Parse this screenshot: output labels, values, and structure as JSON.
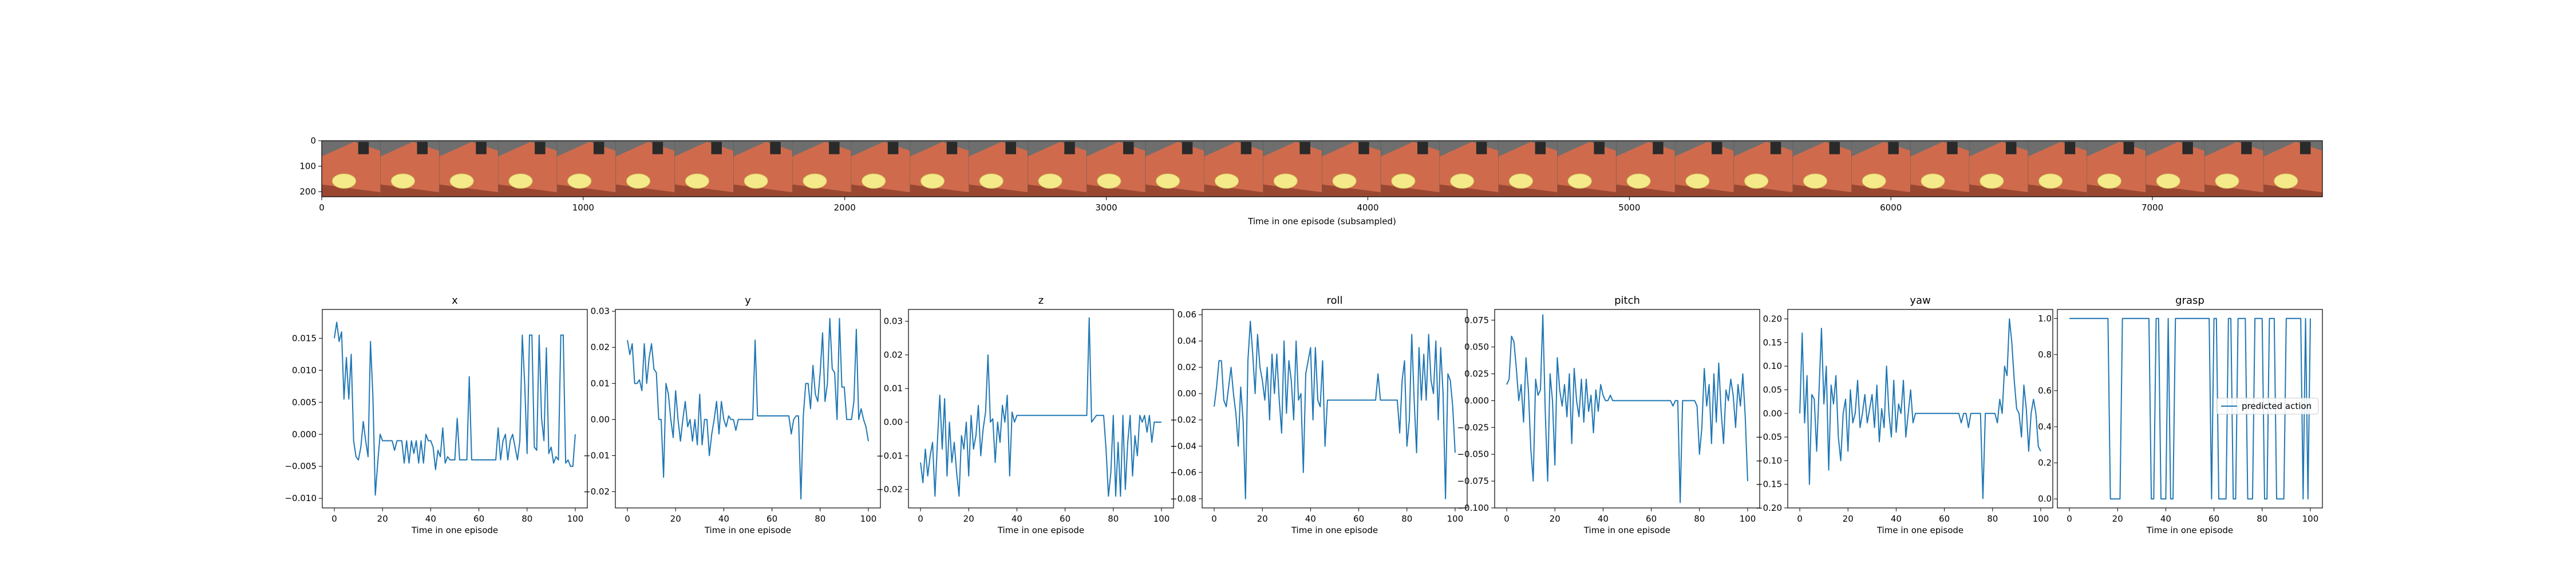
{
  "colors": {
    "line": "#1f77b4",
    "axis": "#000000",
    "table": "#cf6b4c",
    "table_dark": "#9a4732",
    "bg": "#6e6e6e",
    "cup": "#f4ea8a"
  },
  "strip": {
    "xlabel": "Time in one episode (subsampled)",
    "xticks": [
      0,
      1000,
      2000,
      3000,
      4000,
      5000,
      6000,
      7000
    ],
    "yticks": [
      0,
      100,
      200
    ],
    "xlim": [
      0,
      7650
    ],
    "ylim": [
      220,
      0
    ],
    "frame_count": 34
  },
  "chart_data": [
    {
      "type": "line",
      "title": "x",
      "xlabel": "Time in one episode",
      "xlim": [
        -5,
        105
      ],
      "ylim": [
        -0.0115,
        0.0195
      ],
      "xticks": [
        0,
        20,
        40,
        60,
        80,
        100
      ],
      "yticks": [
        -0.01,
        -0.005,
        0.0,
        0.005,
        0.01,
        0.015
      ],
      "ytick_labels": [
        "−0.010",
        "−0.005",
        "0.000",
        "0.005",
        "0.010",
        "0.015"
      ],
      "values": [
        0.015,
        0.0175,
        0.0145,
        0.016,
        0.0055,
        0.012,
        0.0055,
        0.0125,
        -0.001,
        -0.0035,
        -0.004,
        -0.002,
        0.002,
        -0.001,
        -0.0035,
        0.0145,
        0.006,
        -0.0095,
        -0.0045,
        0.0,
        -0.001,
        -0.001,
        -0.001,
        -0.001,
        -0.001,
        -0.0025,
        -0.001,
        -0.001,
        -0.001,
        -0.0045,
        -0.001,
        -0.0045,
        -0.001,
        -0.003,
        -0.001,
        -0.0045,
        -0.001,
        -0.0045,
        0.0,
        -0.001,
        -0.001,
        -0.002,
        -0.0055,
        -0.0025,
        -0.0035,
        0.001,
        -0.0045,
        -0.0035,
        -0.004,
        -0.004,
        -0.004,
        0.0025,
        -0.004,
        -0.004,
        -0.004,
        -0.004,
        0.009,
        -0.004,
        -0.004,
        -0.004,
        -0.004,
        -0.004,
        -0.004,
        -0.004,
        -0.004,
        -0.004,
        -0.004,
        -0.004,
        0.001,
        -0.004,
        -0.001,
        0.0,
        -0.004,
        -0.001,
        0.0,
        -0.002,
        -0.004,
        -0.001,
        0.0155,
        0.008,
        -0.003,
        0.0155,
        0.0155,
        -0.002,
        -0.0025,
        0.0155,
        0.0025,
        -0.001,
        0.0135,
        -0.003,
        -0.002,
        -0.0045,
        -0.0035,
        -0.004,
        0.0155,
        0.0155,
        -0.0045,
        -0.004,
        -0.005,
        -0.005,
        0.0
      ]
    },
    {
      "type": "line",
      "title": "y",
      "xlabel": "Time in one episode",
      "xlim": [
        -5,
        105
      ],
      "ylim": [
        -0.0245,
        0.0305
      ],
      "xticks": [
        0,
        20,
        40,
        60,
        80,
        100
      ],
      "yticks": [
        -0.02,
        -0.01,
        0.0,
        0.01,
        0.02,
        0.03
      ],
      "ytick_labels": [
        "−0.02",
        "−0.01",
        "0.00",
        "0.01",
        "0.02",
        "0.03"
      ],
      "values": [
        0.022,
        0.018,
        0.021,
        0.01,
        0.01,
        0.011,
        0.008,
        0.021,
        0.01,
        0.017,
        0.021,
        0.014,
        0.013,
        0.0,
        0.0,
        -0.016,
        0.01,
        0.007,
        0.0,
        -0.005,
        0.008,
        0.0,
        -0.006,
        0.0,
        0.005,
        -0.002,
        0.0,
        -0.006,
        0.0,
        -0.007,
        0.007,
        -0.007,
        0.0,
        0.0,
        -0.01,
        -0.004,
        0.0,
        0.005,
        -0.004,
        0.005,
        0.0,
        -0.002,
        0.001,
        0.0,
        0.0,
        -0.003,
        0.0,
        0.0,
        0.0,
        0.0,
        0.0,
        0.0,
        0.0,
        0.022,
        0.001,
        0.001,
        0.001,
        0.001,
        0.001,
        0.001,
        0.001,
        0.001,
        0.001,
        0.001,
        0.001,
        0.001,
        0.001,
        0.001,
        -0.004,
        0.0,
        0.001,
        0.001,
        -0.022,
        0.001,
        0.01,
        0.01,
        0.003,
        0.015,
        0.007,
        0.005,
        0.013,
        0.024,
        0.005,
        0.01,
        0.028,
        0.014,
        0.013,
        0.0,
        0.028,
        0.009,
        0.009,
        0.0,
        0.0,
        0.0,
        0.005,
        0.025,
        0.0,
        0.003,
        0.0,
        -0.002,
        -0.006
      ]
    },
    {
      "type": "line",
      "title": "z",
      "xlabel": "Time in one episode",
      "xlim": [
        -5,
        105
      ],
      "ylim": [
        -0.0255,
        0.0335
      ],
      "xticks": [
        0,
        20,
        40,
        60,
        80,
        100
      ],
      "yticks": [
        -0.02,
        -0.01,
        0.0,
        0.01,
        0.02,
        0.03
      ],
      "ytick_labels": [
        "−0.02",
        "−0.01",
        "0.00",
        "0.01",
        "0.02",
        "0.03"
      ],
      "values": [
        -0.012,
        -0.018,
        -0.008,
        -0.016,
        -0.01,
        -0.006,
        -0.022,
        -0.006,
        0.008,
        -0.008,
        0.007,
        -0.016,
        0.0,
        -0.012,
        -0.006,
        -0.015,
        -0.022,
        -0.004,
        -0.008,
        0.0,
        -0.016,
        0.002,
        -0.008,
        -0.004,
        0.005,
        -0.01,
        -0.002,
        0.003,
        0.02,
        0.0,
        0.001,
        -0.012,
        0.0,
        -0.006,
        0.005,
        0.0,
        0.008,
        -0.016,
        0.003,
        0.0,
        0.002,
        0.002,
        0.002,
        0.002,
        0.002,
        0.002,
        0.002,
        0.002,
        0.002,
        0.002,
        0.002,
        0.002,
        0.002,
        0.002,
        0.002,
        0.002,
        0.002,
        0.002,
        0.002,
        0.002,
        0.002,
        0.002,
        0.002,
        0.002,
        0.002,
        0.002,
        0.002,
        0.002,
        0.002,
        0.002,
        0.031,
        0.0,
        0.001,
        0.002,
        0.002,
        0.002,
        0.002,
        -0.008,
        -0.022,
        -0.015,
        0.002,
        -0.022,
        -0.006,
        -0.022,
        0.002,
        -0.02,
        -0.006,
        0.002,
        -0.016,
        -0.004,
        -0.01,
        0.002,
        0.0,
        0.002,
        -0.003,
        0.002,
        -0.006,
        0.0,
        0.0,
        0.0,
        0.0
      ]
    },
    {
      "type": "line",
      "title": "roll",
      "xlabel": "Time in one episode",
      "xlim": [
        -5,
        105
      ],
      "ylim": [
        -0.087,
        0.064
      ],
      "xticks": [
        0,
        20,
        40,
        60,
        80,
        100
      ],
      "yticks": [
        -0.08,
        -0.06,
        -0.04,
        -0.02,
        0.0,
        0.02,
        0.04,
        0.06
      ],
      "ytick_labels": [
        "−0.08",
        "−0.06",
        "−0.04",
        "−0.02",
        "0.00",
        "0.02",
        "0.04",
        "0.06"
      ],
      "values": [
        -0.01,
        0.005,
        0.025,
        0.025,
        -0.005,
        -0.01,
        0.005,
        0.02,
        0.0,
        -0.015,
        -0.04,
        0.005,
        -0.02,
        -0.08,
        0.025,
        0.055,
        0.03,
        0.0,
        0.045,
        0.02,
        0.01,
        -0.005,
        0.02,
        -0.02,
        0.03,
        0.0,
        0.03,
        -0.005,
        -0.03,
        0.04,
        -0.015,
        0.025,
        0.01,
        -0.02,
        0.04,
        -0.005,
        0.0,
        -0.06,
        0.015,
        0.025,
        0.035,
        -0.02,
        0.035,
        -0.005,
        -0.01,
        0.025,
        -0.04,
        -0.005,
        -0.005,
        -0.005,
        -0.005,
        -0.005,
        -0.005,
        -0.005,
        -0.005,
        -0.005,
        -0.005,
        -0.005,
        -0.005,
        -0.005,
        -0.005,
        -0.005,
        -0.005,
        -0.005,
        -0.005,
        -0.005,
        -0.005,
        -0.005,
        0.015,
        -0.005,
        -0.005,
        -0.005,
        -0.005,
        -0.005,
        -0.005,
        -0.005,
        -0.005,
        -0.03,
        0.01,
        0.025,
        -0.04,
        -0.02,
        0.045,
        -0.005,
        -0.045,
        0.035,
        -0.005,
        0.03,
        -0.005,
        0.045,
        0.01,
        0.0,
        0.04,
        -0.02,
        0.035,
        0.0,
        -0.08,
        0.015,
        0.01,
        -0.01,
        -0.045
      ]
    },
    {
      "type": "line",
      "title": "pitch",
      "xlabel": "Time in one episode",
      "xlim": [
        -5,
        105
      ],
      "ylim": [
        -0.1,
        0.085
      ],
      "xticks": [
        0,
        20,
        40,
        60,
        80,
        100
      ],
      "yticks": [
        -0.1,
        -0.075,
        -0.05,
        -0.025,
        0.0,
        0.025,
        0.05,
        0.075
      ],
      "ytick_labels": [
        "−0.100",
        "−0.075",
        "−0.050",
        "−0.025",
        "0.000",
        "0.025",
        "0.050",
        "0.075"
      ],
      "values": [
        0.015,
        0.02,
        0.06,
        0.055,
        0.03,
        0.0,
        0.015,
        -0.02,
        0.04,
        0.01,
        -0.045,
        -0.075,
        0.02,
        0.005,
        0.01,
        0.08,
        -0.01,
        -0.075,
        0.025,
        0.0,
        -0.06,
        0.04,
        0.01,
        -0.005,
        0.015,
        -0.015,
        0.025,
        -0.04,
        0.03,
        0.0,
        -0.015,
        0.02,
        -0.02,
        0.02,
        -0.01,
        0.005,
        -0.03,
        0.01,
        -0.01,
        0.015,
        0.005,
        0.0,
        0.0,
        0.005,
        0.0,
        0.0,
        0.0,
        0.0,
        0.0,
        0.0,
        0.0,
        0.0,
        0.0,
        0.0,
        0.0,
        0.0,
        0.0,
        0.0,
        0.0,
        0.0,
        0.0,
        0.0,
        0.0,
        0.0,
        0.0,
        0.0,
        0.0,
        0.0,
        0.0,
        -0.005,
        0.0,
        0.0,
        -0.095,
        0.0,
        0.0,
        0.0,
        0.0,
        0.0,
        0.0,
        -0.005,
        -0.05,
        -0.025,
        0.03,
        -0.005,
        0.015,
        -0.04,
        0.025,
        -0.02,
        0.035,
        -0.01,
        -0.04,
        0.01,
        0.0,
        0.02,
        0.005,
        -0.025,
        0.015,
        -0.005,
        0.025,
        -0.015,
        -0.075
      ]
    },
    {
      "type": "line",
      "title": "yaw",
      "xlabel": "Time in one episode",
      "xlim": [
        -5,
        105
      ],
      "ylim": [
        -0.2,
        0.22
      ],
      "xticks": [
        0,
        20,
        40,
        60,
        80,
        100
      ],
      "yticks": [
        -0.2,
        -0.15,
        -0.1,
        -0.05,
        0.0,
        0.05,
        0.1,
        0.15,
        0.2
      ],
      "ytick_labels": [
        "−0.20",
        "−0.15",
        "−0.10",
        "−0.05",
        "0.00",
        "0.05",
        "0.10",
        "0.15",
        "0.20"
      ],
      "values": [
        0.0,
        0.17,
        -0.02,
        0.08,
        -0.15,
        0.04,
        0.03,
        -0.08,
        0.05,
        0.18,
        0.02,
        0.1,
        -0.12,
        0.06,
        0.02,
        0.08,
        -0.05,
        -0.1,
        0.0,
        0.03,
        -0.08,
        0.05,
        -0.02,
        0.0,
        0.07,
        -0.03,
        0.0,
        0.04,
        -0.02,
        0.01,
        0.04,
        -0.03,
        0.06,
        -0.06,
        0.01,
        -0.03,
        0.1,
        0.0,
        -0.05,
        0.07,
        -0.04,
        0.02,
        0.0,
        0.07,
        -0.05,
        0.0,
        0.05,
        -0.02,
        0.0,
        0.0,
        0.0,
        0.0,
        0.0,
        0.0,
        0.0,
        0.0,
        0.0,
        0.0,
        0.0,
        0.0,
        0.0,
        0.0,
        0.0,
        0.0,
        0.0,
        0.0,
        0.0,
        -0.02,
        0.0,
        0.0,
        -0.03,
        0.0,
        0.0,
        0.0,
        0.0,
        0.0,
        -0.18,
        0.0,
        0.0,
        0.0,
        0.0,
        0.0,
        -0.02,
        0.03,
        0.0,
        0.1,
        0.08,
        0.2,
        0.15,
        0.07,
        0.01,
        0.0,
        -0.05,
        0.06,
        0.01,
        -0.08,
        0.0,
        0.03,
        0.0,
        -0.07,
        -0.08
      ]
    },
    {
      "type": "line",
      "title": "grasp",
      "xlabel": "Time in one episode",
      "xlim": [
        -5,
        105
      ],
      "ylim": [
        -0.05,
        1.05
      ],
      "xticks": [
        0,
        20,
        40,
        60,
        80,
        100
      ],
      "yticks": [
        0.0,
        0.2,
        0.4,
        0.6,
        0.8,
        1.0
      ],
      "ytick_labels": [
        "0.0",
        "0.2",
        "0.4",
        "0.6",
        "0.8",
        "1.0"
      ],
      "legend": [
        "predicted action"
      ],
      "legend_position": "right",
      "values": [
        1,
        1,
        1,
        1,
        1,
        1,
        1,
        1,
        1,
        1,
        1,
        1,
        1,
        1,
        1,
        1,
        1,
        0,
        0,
        0,
        0,
        0,
        1,
        1,
        1,
        1,
        1,
        1,
        1,
        1,
        1,
        1,
        1,
        1,
        0,
        0,
        1,
        1,
        0,
        0,
        0,
        1,
        0,
        0,
        1,
        1,
        1,
        1,
        1,
        1,
        1,
        1,
        1,
        1,
        1,
        1,
        1,
        1,
        1,
        0,
        1,
        1,
        0,
        0,
        0,
        0,
        1,
        1,
        0,
        0,
        1,
        1,
        1,
        1,
        0,
        0,
        0,
        1,
        1,
        1,
        1,
        0,
        0,
        1,
        1,
        1,
        0,
        0,
        0,
        0,
        1,
        1,
        1,
        1,
        1,
        1,
        1,
        0,
        1,
        0,
        1
      ]
    }
  ]
}
